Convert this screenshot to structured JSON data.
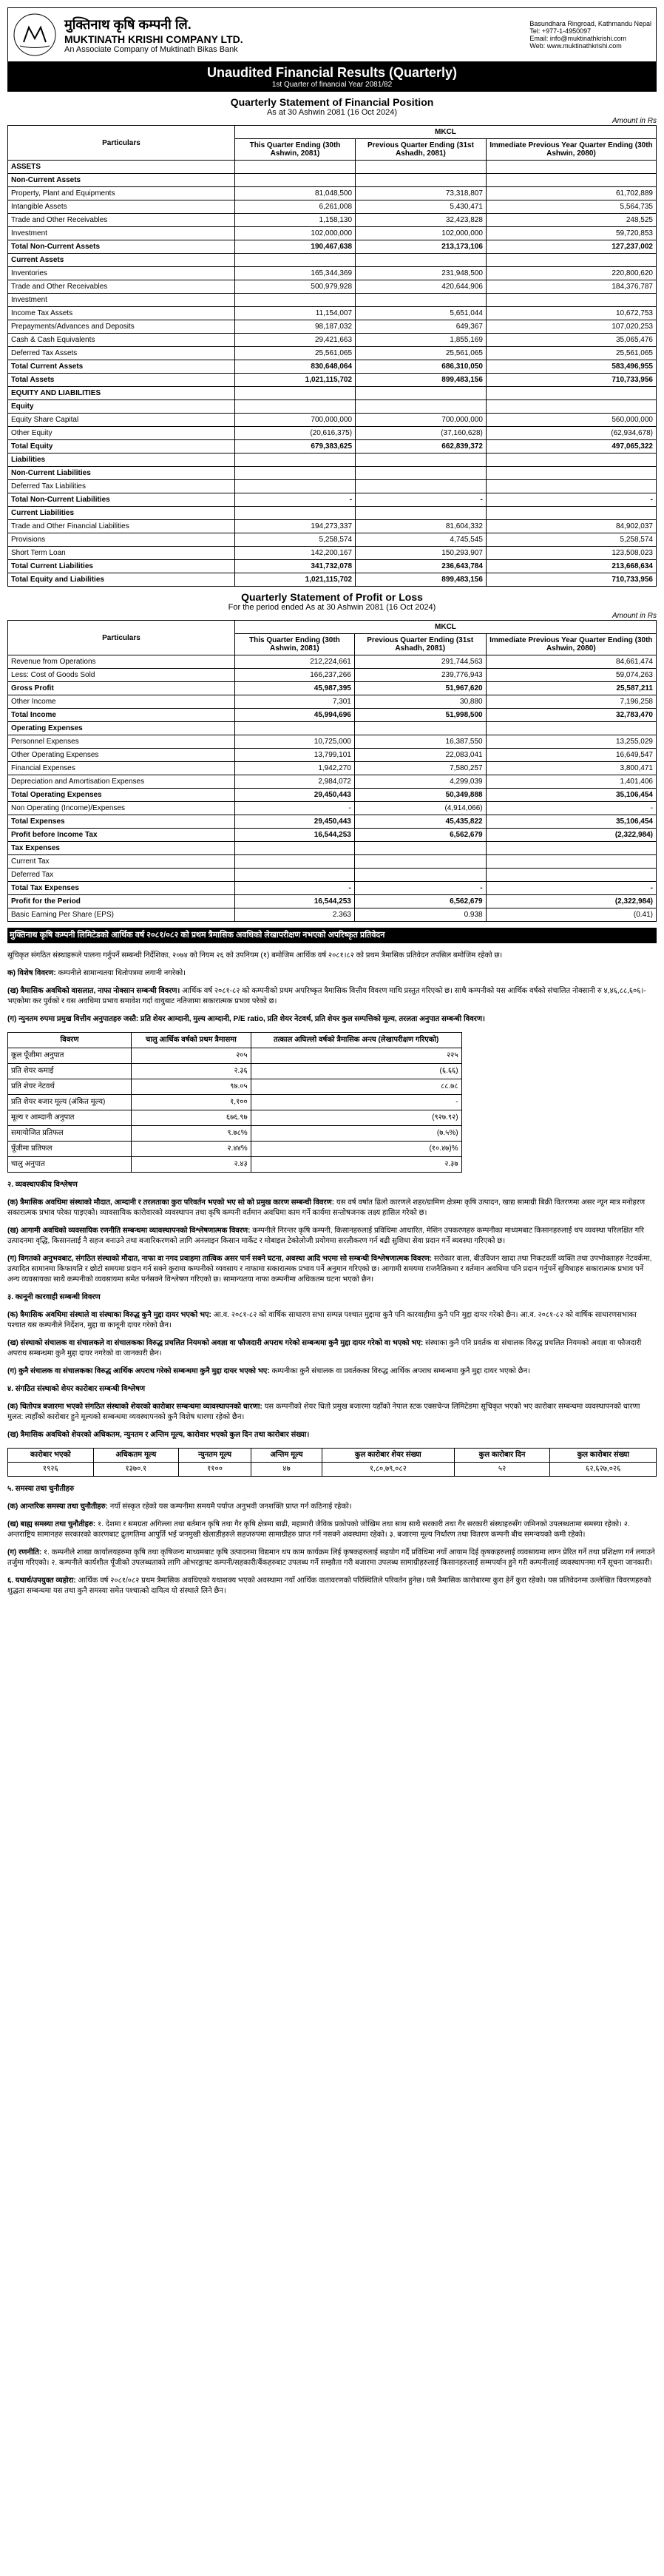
{
  "header": {
    "company_np": "मुक्तिनाथ कृषि कम्पनी लि.",
    "company_en": "MUKTINATH KRISHI COMPANY LTD.",
    "associate": "An Associate Company of Muktinath Bikas Bank",
    "address": "Basundhara Ringroad, Kathmandu Nepal",
    "tel": "Tel: +977-1-4950097",
    "email": "Email: info@muktinathkrishi.com",
    "web": "Web: www.muktinathkrishi.com"
  },
  "banner": {
    "title": "Unaudited Financial Results (Quarterly)",
    "sub": "1st Quarter of financial Year 2081/82"
  },
  "fp": {
    "title": "Quarterly Statement of Financial Position",
    "asat": "As at 30 Ashwin 2081 (16 Oct 2024)",
    "amount": "Amount in Rs",
    "mkcl": "MKCL",
    "particulars": "Particulars",
    "col1": "This Quarter Ending (30th Ashwin, 2081)",
    "col2": "Previous Quarter Ending (31st Ashadh, 2081)",
    "col3": "Immediate Previous Year Quarter Ending (30th Ashwin, 2080)",
    "rows": [
      {
        "l": "ASSETS",
        "b": 1
      },
      {
        "l": "Non-Current Assets",
        "b": 1
      },
      {
        "l": "Property, Plant and Equipments",
        "c1": "81,048,500",
        "c2": "73,318,807",
        "c3": "61,702,889"
      },
      {
        "l": "Intangible Assets",
        "c1": "6,261,008",
        "c2": "5,430,471",
        "c3": "5,564,735"
      },
      {
        "l": "Trade and Other Receivables",
        "c1": "1,158,130",
        "c2": "32,423,828",
        "c3": "248,525"
      },
      {
        "l": "Investment",
        "c1": "102,000,000",
        "c2": "102,000,000",
        "c3": "59,720,853"
      },
      {
        "l": "Total Non-Current Assets",
        "c1": "190,467,638",
        "c2": "213,173,106",
        "c3": "127,237,002",
        "b": 1
      },
      {
        "l": "Current Assets",
        "b": 1
      },
      {
        "l": "Inventories",
        "c1": "165,344,369",
        "c2": "231,948,500",
        "c3": "220,800,620"
      },
      {
        "l": "Trade and Other Receivables",
        "c1": "500,979,928",
        "c2": "420,644,906",
        "c3": "184,376,787"
      },
      {
        "l": "Investment",
        "c1": "",
        "c2": "",
        "c3": ""
      },
      {
        "l": "Income Tax Assets",
        "c1": "11,154,007",
        "c2": "5,651,044",
        "c3": "10,672,753"
      },
      {
        "l": "Prepayments/Advances and Deposits",
        "c1": "98,187,032",
        "c2": "649,367",
        "c3": "107,020,253"
      },
      {
        "l": "Cash & Cash Equivalents",
        "c1": "29,421,663",
        "c2": "1,855,169",
        "c3": "35,065,476"
      },
      {
        "l": "Deferred Tax Assets",
        "c1": "25,561,065",
        "c2": "25,561,065",
        "c3": "25,561,065"
      },
      {
        "l": "Total Current Assets",
        "c1": "830,648,064",
        "c2": "686,310,050",
        "c3": "583,496,955",
        "b": 1
      },
      {
        "l": "Total Assets",
        "c1": "1,021,115,702",
        "c2": "899,483,156",
        "c3": "710,733,956",
        "b": 1
      },
      {
        "l": "EQUITY AND LIABILITIES",
        "b": 1
      },
      {
        "l": "Equity",
        "b": 1
      },
      {
        "l": "Equity Share Capital",
        "c1": "700,000,000",
        "c2": "700,000,000",
        "c3": "560,000,000"
      },
      {
        "l": "Other Equity",
        "c1": "(20,616,375)",
        "c2": "(37,160,628)",
        "c3": "(62,934,678)"
      },
      {
        "l": "Total Equity",
        "c1": "679,383,625",
        "c2": "662,839,372",
        "c3": "497,065,322",
        "b": 1
      },
      {
        "l": "Liabilities",
        "b": 1
      },
      {
        "l": "Non-Current Liabilities",
        "b": 1
      },
      {
        "l": "Deferred Tax Liabilities",
        "c1": "",
        "c2": "",
        "c3": ""
      },
      {
        "l": "Total Non-Current Liabilities",
        "c1": "-",
        "c2": "-",
        "c3": "-",
        "b": 1
      },
      {
        "l": "Current Liabilities",
        "b": 1
      },
      {
        "l": "Trade and Other Financial Liabilities",
        "c1": "194,273,337",
        "c2": "81,604,332",
        "c3": "84,902,037"
      },
      {
        "l": "Provisions",
        "c1": "5,258,574",
        "c2": "4,745,545",
        "c3": "5,258,574"
      },
      {
        "l": "Short Term Loan",
        "c1": "142,200,167",
        "c2": "150,293,907",
        "c3": "123,508,023"
      },
      {
        "l": "Total Current Liabilities",
        "c1": "341,732,078",
        "c2": "236,643,784",
        "c3": "213,668,634",
        "b": 1
      },
      {
        "l": "Total Equity and Liabilities",
        "c1": "1,021,115,702",
        "c2": "899,483,156",
        "c3": "710,733,956",
        "b": 1
      }
    ]
  },
  "pl": {
    "title": "Quarterly Statement of Profit or Loss",
    "asat": "For the period ended As at 30 Ashwin 2081 (16 Oct 2024)",
    "amount": "Amount in Rs",
    "col1": "This Quarter Ending (30th Ashwin, 2081)",
    "col2": "Previous Quarter Ending (31st Ashadh, 2081)",
    "col3": "Immediate Previous Year Quarter Ending (30th Ashwin, 2080)",
    "rows": [
      {
        "l": "Revenue from Operations",
        "c1": "212,224,661",
        "c2": "291,744,563",
        "c3": "84,661,474"
      },
      {
        "l": "Less: Cost of Goods Sold",
        "c1": "166,237,266",
        "c2": "239,776,943",
        "c3": "59,074,263"
      },
      {
        "l": "Gross Profit",
        "c1": "45,987,395",
        "c2": "51,967,620",
        "c3": "25,587,211",
        "b": 1
      },
      {
        "l": "Other Income",
        "c1": "7,301",
        "c2": "30,880",
        "c3": "7,196,258"
      },
      {
        "l": "Total Income",
        "c1": "45,994,696",
        "c2": "51,998,500",
        "c3": "32,783,470",
        "b": 1
      },
      {
        "l": "Operating Expenses",
        "b": 1
      },
      {
        "l": "Personnel Expenses",
        "c1": "10,725,000",
        "c2": "16,387,550",
        "c3": "13,255,029"
      },
      {
        "l": "Other Operating Expenses",
        "c1": "13,799,101",
        "c2": "22,083,041",
        "c3": "16,649,547"
      },
      {
        "l": "Financial Expenses",
        "c1": "1,942,270",
        "c2": "7,580,257",
        "c3": "3,800,471"
      },
      {
        "l": "Depreciation and Amortisation Expenses",
        "c1": "2,984,072",
        "c2": "4,299,039",
        "c3": "1,401,406"
      },
      {
        "l": "Total Operating Expenses",
        "c1": "29,450,443",
        "c2": "50,349,888",
        "c3": "35,106,454",
        "b": 1
      },
      {
        "l": "Non Operating (Income)/Expenses",
        "c1": "-",
        "c2": "(4,914,066)",
        "c3": "-"
      },
      {
        "l": "Total Expenses",
        "c1": "29,450,443",
        "c2": "45,435,822",
        "c3": "35,106,454",
        "b": 1
      },
      {
        "l": "Profit before Income Tax",
        "c1": "16,544,253",
        "c2": "6,562,679",
        "c3": "(2,322,984)",
        "b": 1
      },
      {
        "l": "Tax Expenses",
        "b": 1
      },
      {
        "l": "Current Tax",
        "c1": "",
        "c2": "",
        "c3": ""
      },
      {
        "l": "Deferred Tax",
        "c1": "",
        "c2": "",
        "c3": ""
      },
      {
        "l": "Total Tax Expenses",
        "c1": "-",
        "c2": "-",
        "c3": "-",
        "b": 1
      },
      {
        "l": "Profit for the Period",
        "c1": "16,544,253",
        "c2": "6,562,679",
        "c3": "(2,322,984)",
        "b": 1
      },
      {
        "l": "Basic Earning Per Share (EPS)",
        "c1": "2.363",
        "c2": "0.938",
        "c3": "(0.41)"
      }
    ]
  },
  "notes_heading": "मुक्तिनाथ कृषि कम्पनी लिमिटेडको आर्थिक वर्ष २०८१/०८२ को प्रथम त्रैमासिक अवधिको लेखापरीक्षण नभएको अपरिष्कृत प्रतिवेदन",
  "notes_intro": "सूचिकृत संगठित संस्थाहरूले पालना गर्नुपर्ने सम्बन्धी निर्देशिका, २०७४ को नियम २६ को उपनियम (१) बमोजिम आर्थिक वर्ष २०८१।८२ को प्रथम त्रैमासिक प्रतिवेदन तपसिल बमोजिम रहेको छ।",
  "ratio": {
    "h1": "विवरण",
    "h2": "चालु आर्थिक वर्षको प्रथम त्रैमासमा",
    "h3": "तत्काल अघिल्लो वर्षको त्रैमासिक अन्त्य (लेखापरीक्षण गरिएको)",
    "rows": [
      {
        "l": "कूल पूँजीमा अनुपात",
        "c1": "२०५",
        "c2": "२२५"
      },
      {
        "l": "प्रति शेयर कमाई",
        "c1": "२.३६",
        "c2": "(६.६६)"
      },
      {
        "l": "प्रति शेयर नेटवर्थ",
        "c1": "९७.०५",
        "c2": "८८.७८"
      },
      {
        "l": "प्रति शेयर बजार मूल्य (अंकित मूल्य)",
        "c1": "१,१००",
        "c2": "-"
      },
      {
        "l": "मूल्य र आम्दानी अनुपात",
        "c1": "६७६.९७",
        "c2": "(९२७.९२)"
      },
      {
        "l": "समायोजित प्रतिफल",
        "c1": "९.७८%",
        "c2": "(७.५%)"
      },
      {
        "l": "पूँजीमा प्रतिफल",
        "c1": "२.४४%",
        "c2": "(१०.४७)%"
      },
      {
        "l": "चालु अनुपात",
        "c1": "२.४३",
        "c2": "२.३७"
      }
    ]
  },
  "branch": {
    "h": [
      "कारोबार भएको",
      "अधिकतम मूल्य",
      "न्युनतम मूल्य",
      "अन्तिम मूल्य",
      "कुल कारोबार शेयर संख्या",
      "कुल कारोबार दिन",
      "कुल कारोबार संख्या"
    ],
    "r": [
      "१९२६",
      "१३७०.१",
      "११००",
      "४७",
      "१,८०,७९,०८२",
      "५२",
      "६२,६२७,०२६"
    ]
  },
  "note_items": [
    {
      "t": "क) विशेष विवरण:",
      "d": "कम्पनीले सामान्यतया धितोपत्रमा लगानी नगरेको।"
    },
    {
      "t": "(ख) त्रैमासिक अवधिको वासलात, नाफा नोक्सान सम्बन्धी विवरण।",
      "d": "आर्थिक वर्ष २०८१-८२ को कम्पनीको प्रथम अपरिष्कृत त्रैमासिक वित्तीय विवरण माथि प्रस्तुत गरिएको छ। साथै कम्पनीको यस आर्थिक वर्षको संचालित नोक्सानी रु ४,४६,८८,६०६।- भएकोमा कर पुर्वको र यस अवधिमा प्रभाव समावेश गर्दा वायुबाट नतिजामा सकारात्मक प्रभाव परेको छ।"
    },
    {
      "t": "(ग) न्युनतम रुपमा प्रमुख वित्तीय अनुपातहरु जस्तै: प्रति शेयर आम्दानी, मुल्य आम्दानी, P/E ratio, प्रति शेयर नेटवर्थ, प्रति शेयर कुल सम्पत्तिको मूल्य, तरलता अनुपात सम्बन्धी विवरण।",
      "d": ""
    },
    {
      "t": "२. व्यवस्थापकीय विश्लेषण",
      "d": ""
    },
    {
      "t": "(क) त्रैमासिक अवधिमा संस्थाको मौदात, आम्दानी र तरलताका कुरा परिवर्तन भएको भए सो को प्रमुख कारण सम्बन्धी विवरण:",
      "d": "यस वर्ष वर्षात ढिलो कारणले शहर/ग्रामिण क्षेत्रमा कृषि उत्पादन, खाद्य सामाग्री बिक्री वितरणमा असर न्यून मात्र मनोहरण सकारात्मक प्रभाव परेका पाइएको। व्यावसायिक कारोवारको व्यवस्थापन तथा कृषि कम्पनी वर्तमान अवधिमा काम गर्ने कार्यमा सन्तोषजनक लक्ष्य हासिल गरेको छ।"
    },
    {
      "t": "(ख) आगामी अवधिको व्यवसायिक रणनीति सम्बन्धमा व्यावस्थापनको विश्लेषणात्मक विवरण:",
      "d": "कम्पनीले निरन्तर कृषि कम्पनी, किसानहरुलाई प्रविधिमा आधारित, मेशिन उपकरणहरु कम्पनीका माध्यमबाट किसानहरुलाई थप व्यवस्था परिलक्षित गरि उत्पादनमा वृद्धि, किसानलाई नै सहज बनाउने तथा बजारिकरणको लागि अनलाइन किसान मार्केट र मोबाइल टेकोलोजी प्रयोगमा सरलीकरण गर्न बढी सुशिधा सेवा प्रदान गर्ने ब्यवस्था गरिएको छ।"
    },
    {
      "t": "(ग) विगतको अनुभवबाट, संगठित संस्थाको मौदात, नाफा वा नगद प्रवाहमा तात्विक असर पार्न सक्ने घटना, अवस्था आदि भएमा सो सम्बन्धी विश्लेषणात्मक विवरण:",
      "d": "सरोकार वाला, बीउविजन खादा तथा निकटवर्ती व्यक्ति तथा उपभोक्ताहरु नेटवर्कमा, उत्पादित सामानमा किफायति र छोटो समयमा प्रदान गर्न सक्ने कुरामा कम्पनीको व्यवसाय र नाफामा सकारात्मक प्रभाव पर्ने अनुमान गरिएको छ। आगामी समयमा राजनैतिकमा र वर्तमान अवधिमा पनि प्रदान गर्नुपर्ने सुविधाहरु सकारात्मक प्रभाव पर्ने अन्य व्यवसायका साथै कम्पनीको व्यवसायमा समेत पर्नसक्ने विश्लेषण गरिएको छ। सामान्यतया नाफा कम्पनीमा अधिकतम घटना भएको छैन।"
    },
    {
      "t": "३. कानूनी कारवाही सम्बन्धी विवरण",
      "d": ""
    },
    {
      "t": "(क) त्रैमासिक अवधिमा संस्थाले वा संस्थाका विरुद्ध कुनै मुद्दा दायर भएको भए:",
      "d": "आ.व. २०८१-८२ को वार्षिक साधारण सभा सम्पन्न पश्चात मुद्दामा कुनै पनि कारवाहीमा कुनै पनि मुद्दा दायर गरेको छैन। आ.व. २०८१-८२ को वार्षिक साधारणसभाका पश्चात यस कम्पनीले निर्देशन, मुद्दा वा कानूनी दायर गरेको छैन।"
    },
    {
      "t": "(ख) संस्थाको संचालक वा संचालकले वा संचालकका विरुद्ध प्रचलित नियमको अवज्ञा वा फौजदारी अपराध गरेको सम्बन्धमा कुनै मुद्दा दायर गरेको वा भएको भए:",
      "d": "संस्थाका कुनै पनि प्रवर्तक वा संचालक विरुद्ध प्रचलित नियमको अवज्ञा वा फौजदारी अपराध सम्बन्धमा कुनै मुद्दा दायर नगरेको वा जानकारी छैन।"
    },
    {
      "t": "(ग) कुनै संचालक वा संचालकका विरुद्ध आर्थिक अपराध गरेको सम्बन्धमा कुनै मुद्दा दायर भएको भए:",
      "d": "कम्पनीका कुनै संचालक वा प्रवर्तकका विरुद्ध आर्थिक अपराध सम्बन्धमा कुनै मुद्दा दायर भएको छैन।"
    },
    {
      "t": "४. संगठित संस्थाको शेयर कारोबार सम्बन्धी विश्लेषण",
      "d": ""
    },
    {
      "t": "(क) धितोपत्र बजारमा भएको संगठित संस्थाको शेयरको कारोबार सम्बन्धमा व्यावस्थापनको धारणा:",
      "d": "यस कम्पनीको शेयर धितो प्रमुख बजारमा यहाँको नेपाल स्टक एक्सचेन्ज लिमिटेडमा सूचिकृत भएको भए कारोबार सम्बन्धमा व्यवस्थापनको धारणा मुलत: त्यहाँको कारोबार हुने मूल्यको सम्बन्धमा व्यवस्थापनको कुनै विशेष धारणा रहेको छैन।"
    },
    {
      "t": "(ख) त्रैमासिक अवधिको शेयरको अधिकतम, न्युनतम र अन्तिम मूल्य, कारोवार भएको कुल दिन तथा कारोबार संख्या।",
      "d": ""
    },
    {
      "t": "५. समस्या तथा चुनौतीहरु",
      "d": ""
    },
    {
      "t": "(क) आन्तरिक समस्या तथा चुनौतीहरु:",
      "d": "नयाँ संस्कृत रहेको यस कम्पनीमा समयमै पर्याप्त अनुभवी जनशक्ति प्राप्त गर्न कठिनाई रहेको।"
    },
    {
      "t": "(ख) बाह्य समस्या तथा चुनौतीहरु:",
      "d": "१. देशमा र समग्रता अगिल्ला तथा बर्तमान कृषि तथा गैर कृषि क्षेत्रमा बाढी, महामारी जैविक प्रकोपको जोखिम तथा साथ साथै सरकारी तथा गैर सरकारी संस्थाहरुसँग जमिनको उपलब्धतामा समस्या रहेको। २. अन्तराष्ट्रिय सामानहरु सरकारको कारणबाट द्रुतगतिमा आपुर्ति भई जनमुखी खेलाडीहरुले सहजरुपमा सामाग्रीहरु प्राप्त गर्न नसक्ने अवस्थामा रहेको। ३. बजारमा मूल्य निर्धारण तथा वितरण कम्पनी बीच समन्वयको कमी रहेको।"
    },
    {
      "t": "(ग) रणनीति:",
      "d": "१. कम्पनीले शाखा कार्यालयहरुमा कृषि तथा कृषिजन्य माध्यमबाट कृषि उत्पादनमा विद्यमान थप काम कार्यक्रम लिई कृषकहरुलाई सहयोग गर्दै प्रविधिमा नयाँ आयाम दिई कृषकहरुलाई व्यवसायमा लाग्न प्रेरित गर्ने तथा प्रशिक्षण गर्न लगाउने तर्जुमा गरिएको। २. कम्पनीले कार्यशील पूँजीको उपलब्धताको लागि ओभरड्राफ्ट कम्पनी/सहकारी/बैंकहरुबाट उपलब्ध गर्ने सम्झौता गरी बजारमा उपलब्ध सामाग्रीहरुलाई किसानहरुलाई सम्मपर्यान हुने गरी कम्पनीलाई व्यवस्थापनमा गर्ने सूचना जानकारी।"
    },
    {
      "t": "६. यथार्थ/उपयुक्त व्यहोरा:",
      "d": "आर्थिक वर्ष २०८१/०८२ प्रथम त्रैमासिक अवधिएको यथाशक्य भएको अवस्थामा नयाँ आर्थिक वातावरणको परिस्थितिले परिवर्तन हुनेछ। यसै त्रैमासिक कारोबारमा कुरा हेर्ने कुरा रहेको। यस प्रतिवेदनमा उल्लेखित विवरणहरुको शुद्धता सम्बन्धमा यस तथा कुनै समस्या समेत पश्चात्को दायित्व यो संस्थाले लिने छैन।"
    }
  ]
}
